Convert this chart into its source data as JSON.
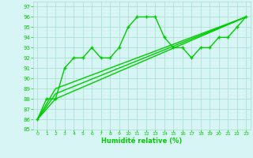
{
  "xlabel": "Humidité relative (%)",
  "xlim": [
    -0.5,
    23.5
  ],
  "ylim": [
    85,
    97.5
  ],
  "yticks": [
    85,
    86,
    87,
    88,
    89,
    90,
    91,
    92,
    93,
    94,
    95,
    96,
    97
  ],
  "xticks": [
    0,
    1,
    2,
    3,
    4,
    5,
    6,
    7,
    8,
    9,
    10,
    11,
    12,
    13,
    14,
    15,
    16,
    17,
    18,
    19,
    20,
    21,
    22,
    23
  ],
  "line_color": "#00CC00",
  "bg_color": "#D8F5F5",
  "grid_color": "#AADDCC",
  "series": [
    {
      "x": [
        0,
        1,
        2,
        3,
        4,
        5,
        6,
        7,
        8,
        9,
        10,
        11,
        12,
        13,
        14,
        15,
        16,
        17,
        18,
        19,
        20,
        21,
        22,
        23
      ],
      "y": [
        86,
        88,
        88,
        91,
        92,
        92,
        93,
        92,
        92,
        93,
        95,
        96,
        96,
        96,
        94,
        93,
        93,
        92,
        93,
        93,
        94,
        94,
        95,
        96
      ],
      "marker": "+",
      "markersize": 3.5,
      "linewidth": 1.0
    },
    {
      "x": [
        0,
        2,
        23
      ],
      "y": [
        86,
        88,
        96
      ],
      "marker": null,
      "linewidth": 1.0
    },
    {
      "x": [
        0,
        2,
        23
      ],
      "y": [
        86,
        88.5,
        96
      ],
      "marker": null,
      "linewidth": 1.0
    },
    {
      "x": [
        0,
        2,
        23
      ],
      "y": [
        86,
        89,
        96
      ],
      "marker": null,
      "linewidth": 1.0
    }
  ]
}
